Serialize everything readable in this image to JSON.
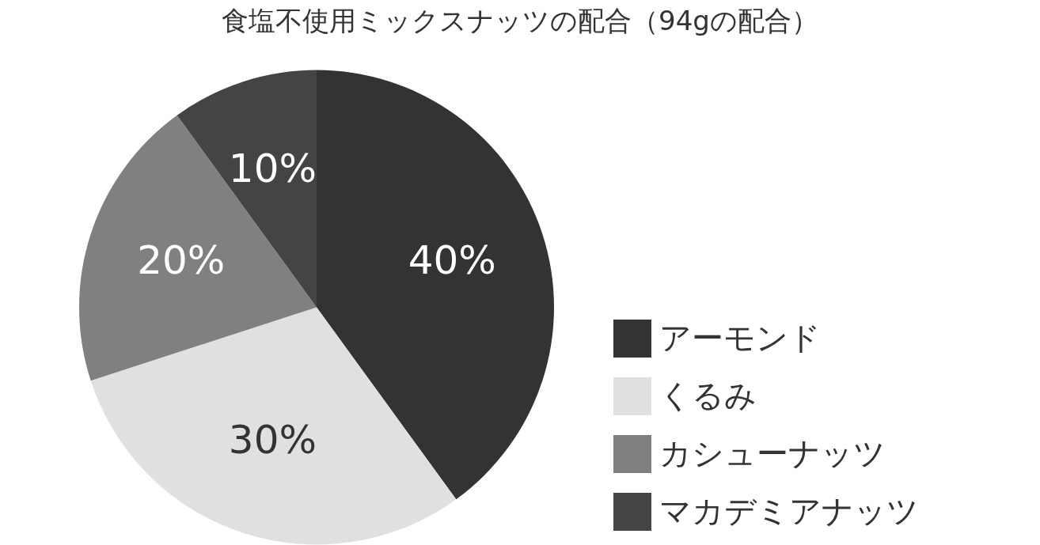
{
  "chart_data": {
    "type": "pie",
    "title": "食塩不使用ミックスナッツの配合（94gの配合）",
    "categories": [
      "アーモンド",
      "くるみ",
      "カシューナッツ",
      "マカデミアナッツ"
    ],
    "values": [
      40,
      30,
      20,
      10
    ],
    "colors": [
      "#333333",
      "#e0e0e0",
      "#808080",
      "#444444"
    ],
    "value_labels": [
      "40%",
      "30%",
      "20%",
      "10%"
    ],
    "legend": "bottom right"
  }
}
